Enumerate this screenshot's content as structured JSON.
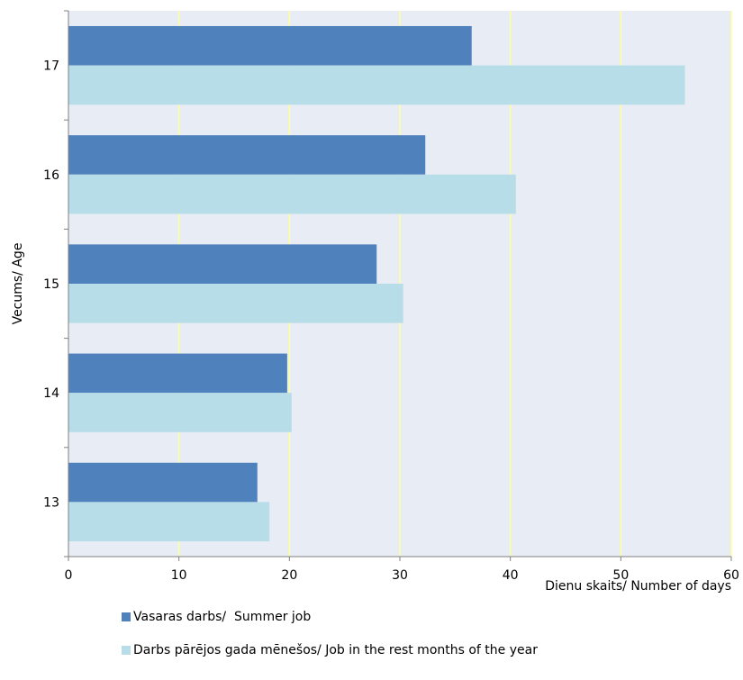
{
  "chart_data": {
    "type": "bar",
    "orientation": "horizontal",
    "categories": [
      "13",
      "14",
      "15",
      "16",
      "17"
    ],
    "series": [
      {
        "name": "Vasaras darbs/  Summer job",
        "color": "#4f81bd",
        "values": [
          17.1,
          19.8,
          27.9,
          32.3,
          36.5
        ]
      },
      {
        "name": "Darbs pārējos gada mēnešos/ Job in the rest months of the year",
        "color": "#b7dde8",
        "values": [
          18.2,
          20.2,
          30.3,
          40.5,
          55.8
        ]
      }
    ],
    "xlabel": "Dienu skaits/ Number of days",
    "ylabel": "Vecums/ Age",
    "xlim": [
      0,
      60
    ],
    "xticks": [
      0,
      10,
      20,
      30,
      40,
      50,
      60
    ],
    "grid": true,
    "grid_color": "#ffff99",
    "plot_background": "#e8ecf5",
    "legend_position": "bottom"
  }
}
